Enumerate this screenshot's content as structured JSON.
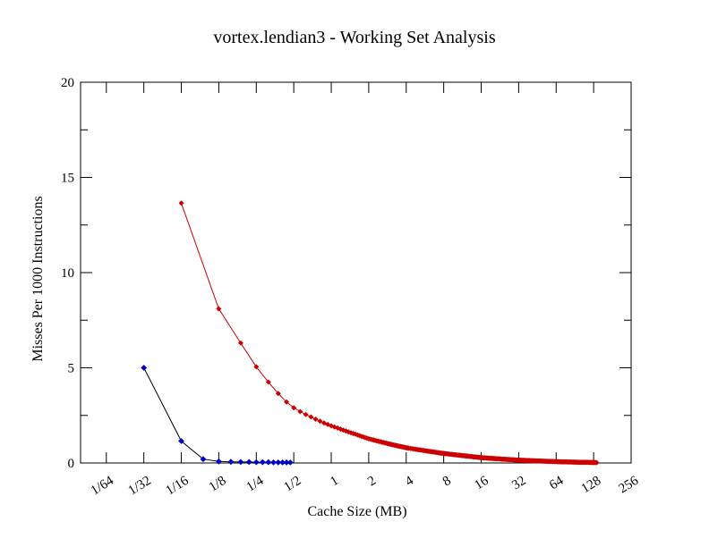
{
  "header": {
    "title": "vortex.lendian3 - Working Set Analysis"
  },
  "chart_data": {
    "type": "line",
    "title": "vortex.lendian3 - Working Set Analysis",
    "xlabel": "Cache Size (MB)",
    "ylabel": "Misses Per 1000 Instructions",
    "x_scale": "log2",
    "xlim_mb": [
      0.0097,
      256
    ],
    "ylim": [
      0,
      20
    ],
    "grid": false,
    "legend": "none",
    "x_ticks": [
      {
        "value": 0.015625,
        "label": "1/64"
      },
      {
        "value": 0.03125,
        "label": "1/32"
      },
      {
        "value": 0.0625,
        "label": "1/16"
      },
      {
        "value": 0.125,
        "label": "1/8"
      },
      {
        "value": 0.25,
        "label": "1/4"
      },
      {
        "value": 0.5,
        "label": "1/2"
      },
      {
        "value": 1,
        "label": "1"
      },
      {
        "value": 2,
        "label": "2"
      },
      {
        "value": 4,
        "label": "4"
      },
      {
        "value": 8,
        "label": "8"
      },
      {
        "value": 16,
        "label": "16"
      },
      {
        "value": 32,
        "label": "32"
      },
      {
        "value": 64,
        "label": "64"
      },
      {
        "value": 128,
        "label": "128"
      },
      {
        "value": 256,
        "label": "256"
      }
    ],
    "y_major_ticks": [
      0,
      5,
      10,
      15,
      20
    ],
    "y_minor_ticks": [
      2.5,
      7.5,
      12.5,
      17.5
    ],
    "series": [
      {
        "id": "series-blue",
        "line_color": "#000000",
        "marker_color": "#0000cc",
        "marker": "diamond",
        "marker_radius": 3.4,
        "sample_step_mb": 0.03125,
        "points": [
          [
            0.03125,
            5.0
          ],
          [
            0.0625,
            1.15
          ],
          [
            0.09375,
            0.2
          ],
          [
            0.125,
            0.08
          ],
          [
            0.15625,
            0.06
          ],
          [
            0.1875,
            0.05
          ],
          [
            0.21875,
            0.05
          ],
          [
            0.25,
            0.04
          ],
          [
            0.28125,
            0.04
          ],
          [
            0.3125,
            0.04
          ],
          [
            0.34375,
            0.03
          ],
          [
            0.375,
            0.03
          ],
          [
            0.40625,
            0.03
          ],
          [
            0.4375,
            0.03
          ],
          [
            0.46875,
            0.03
          ]
        ]
      },
      {
        "id": "series-red",
        "line_color": "#cc0000",
        "marker_color": "#cc0000",
        "marker": "diamond",
        "marker_radius": 3.0,
        "sample_step_mb": 0.0625,
        "sample_max_mb": 136,
        "anchor_points": [
          [
            0.0625,
            13.65
          ],
          [
            0.125,
            8.1
          ],
          [
            0.1875,
            6.3
          ],
          [
            0.25,
            5.05
          ],
          [
            0.3125,
            4.25
          ],
          [
            0.375,
            3.65
          ],
          [
            0.4375,
            3.2
          ],
          [
            0.5,
            2.9
          ],
          [
            0.5625,
            2.7
          ],
          [
            0.625,
            2.55
          ],
          [
            0.75,
            2.3
          ],
          [
            0.875,
            2.1
          ],
          [
            1,
            1.95
          ],
          [
            1.5,
            1.55
          ],
          [
            2,
            1.27
          ],
          [
            3,
            0.98
          ],
          [
            4,
            0.8
          ],
          [
            6,
            0.62
          ],
          [
            8,
            0.5
          ],
          [
            12,
            0.37
          ],
          [
            16,
            0.28
          ],
          [
            24,
            0.2
          ],
          [
            32,
            0.15
          ],
          [
            48,
            0.1
          ],
          [
            64,
            0.07
          ],
          [
            96,
            0.04
          ],
          [
            128,
            0.025
          ],
          [
            136,
            0.02
          ]
        ]
      }
    ]
  }
}
